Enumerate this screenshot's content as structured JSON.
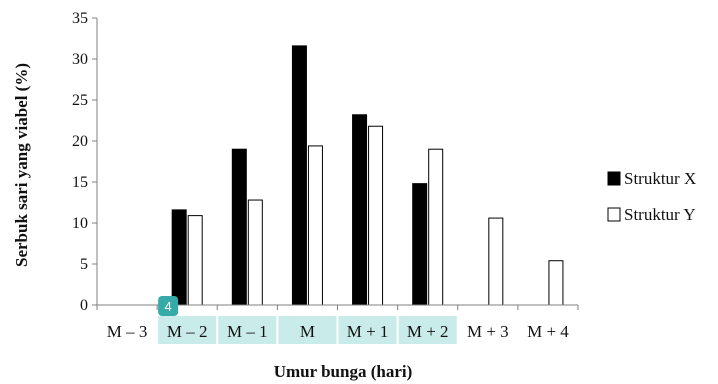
{
  "chart_data": {
    "type": "bar",
    "categories": [
      "M – 3",
      "M – 2",
      "M – 1",
      "M",
      "M + 1",
      "M + 2",
      "M + 3",
      "M + 4"
    ],
    "series": [
      {
        "name": "Struktur X",
        "color": "#000000",
        "values": [
          0,
          11.6,
          19.0,
          31.6,
          23.2,
          14.8,
          0,
          0
        ]
      },
      {
        "name": "Struktur Y",
        "color": "#ffffff",
        "values": [
          0,
          10.9,
          12.8,
          19.4,
          21.8,
          19.0,
          10.6,
          5.4
        ]
      }
    ],
    "xlabel": "Umur bunga (hari)",
    "ylabel": "Serbuk sari yang viabel (%)",
    "ylim": [
      0,
      35
    ],
    "yticks": [
      0,
      5,
      10,
      15,
      20,
      25,
      30,
      35
    ],
    "legend_position": "right",
    "highlighted_categories": [
      1,
      2,
      3,
      4,
      5
    ],
    "highlight_color": "#c9ecea",
    "badge": {
      "label": "4",
      "color": "#35aaa8"
    }
  }
}
